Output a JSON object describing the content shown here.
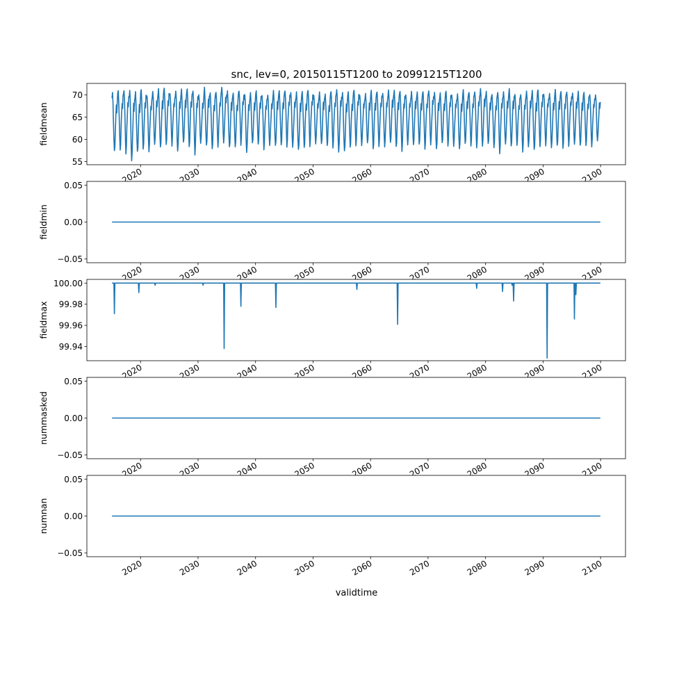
{
  "figure": {
    "title": "snc, lev=0, 20150115T1200 to 20991215T1200",
    "xlabel": "validtime"
  },
  "chart_data": [
    {
      "type": "line",
      "ylabel": "fieldmean",
      "x_range": [
        "2015-01-15",
        "2099-12-15"
      ],
      "xlim": [
        "2010-09-01",
        "2104-05-01"
      ],
      "ylim": [
        54.3,
        72.6
      ],
      "yticks": [
        55,
        60,
        65,
        70
      ],
      "ytick_labels": [
        "55",
        "60",
        "65",
        "70"
      ],
      "xticks": [
        "2020",
        "2030",
        "2040",
        "2050",
        "2060",
        "2070",
        "2080",
        "2090",
        "2100"
      ],
      "line_color": "#1f77b4",
      "series": [
        {
          "pattern": "monthly seasonal cycle",
          "annual_max": [
            70.2,
            71.0,
            71.3,
            71.0,
            70.4,
            71.2,
            70.1,
            70.8,
            71.1,
            71.5,
            70.6,
            70.9,
            71.0,
            71.3,
            71.2,
            70.1,
            71.4,
            70.4,
            70.9,
            71.8,
            70.6,
            70.3,
            71.2,
            70.2,
            70.2,
            70.8,
            70.2,
            70.1,
            70.7,
            70.8,
            71.2,
            70.7,
            70.4,
            70.6,
            71.3,
            70.1,
            70.4,
            70.0,
            71.0,
            71.4,
            70.3,
            70.5,
            71.3,
            70.2,
            70.1,
            70.8,
            70.9,
            70.6,
            70.9,
            70.8,
            71.0,
            70.3,
            70.6,
            70.4,
            70.9,
            71.2,
            70.4,
            70.2,
            71.0,
            70.3,
            70.1,
            70.9,
            70.7,
            71.0,
            71.3,
            70.5,
            70.2,
            70.9,
            70.6,
            71.1,
            70.2,
            70.4,
            70.8,
            70.7,
            71.2,
            70.5,
            70.3,
            70.9,
            70.8,
            71.0,
            70.4,
            70.5,
            70.6,
            70.4,
            70.0
          ],
          "annual_min": [
            57.2,
            57.8,
            57.0,
            55.0,
            57.0,
            58.0,
            57.5,
            58.7,
            58.0,
            59.0,
            58.8,
            57.2,
            59.1,
            58.5,
            56.8,
            59.0,
            58.4,
            58.0,
            58.6,
            59.1,
            58.0,
            58.4,
            59.0,
            57.0,
            58.9,
            59.0,
            58.0,
            58.6,
            58.3,
            58.8,
            58.6,
            58.2,
            57.4,
            58.2,
            58.7,
            59.0,
            58.7,
            58.6,
            58.4,
            57.2,
            57.1,
            58.2,
            58.9,
            58.7,
            58.9,
            57.8,
            58.7,
            58.4,
            59.0,
            58.3,
            57.6,
            58.9,
            58.5,
            58.8,
            58.1,
            58.9,
            57.6,
            59.1,
            58.8,
            58.6,
            57.6,
            58.9,
            58.8,
            58.3,
            58.2,
            58.9,
            58.4,
            57.0,
            58.7,
            58.3,
            58.9,
            57.4,
            58.1,
            57.5,
            58.6,
            58.8,
            57.9,
            58.4,
            58.2,
            58.7,
            58.7,
            58.4,
            58.8,
            58.6,
            59.5
          ]
        }
      ]
    },
    {
      "type": "line",
      "ylabel": "fieldmin",
      "x_range": [
        "2015-01-15",
        "2099-12-15"
      ],
      "xlim": [
        "2010-09-01",
        "2104-05-01"
      ],
      "ylim": [
        -0.055,
        0.055
      ],
      "yticks": [
        -0.05,
        0.0,
        0.05
      ],
      "ytick_labels": [
        "−0.05",
        "0.00",
        "0.05"
      ],
      "xticks": [
        "2020",
        "2030",
        "2040",
        "2050",
        "2060",
        "2070",
        "2080",
        "2090",
        "2100"
      ],
      "line_color": "#1f77b4",
      "series": [
        {
          "constant": 0.0
        }
      ]
    },
    {
      "type": "line",
      "ylabel": "fieldmax",
      "x_range": [
        "2015-01-15",
        "2099-12-15"
      ],
      "xlim": [
        "2010-09-01",
        "2104-05-01"
      ],
      "ylim": [
        99.9265,
        100.0035
      ],
      "yticks": [
        99.94,
        99.96,
        99.98,
        100.0
      ],
      "ytick_labels": [
        "99.94",
        "99.96",
        "99.98",
        "100.00"
      ],
      "xticks": [
        "2020",
        "2030",
        "2040",
        "2050",
        "2060",
        "2070",
        "2080",
        "2090",
        "2100"
      ],
      "line_color": "#1f77b4",
      "series": [
        {
          "baseline": 100.0,
          "dips": [
            {
              "date": "2015-06-15",
              "value": 99.971
            },
            {
              "date": "2019-09-15",
              "value": 99.991
            },
            {
              "date": "2022-07-15",
              "value": 99.998
            },
            {
              "date": "2030-11-15",
              "value": 99.998
            },
            {
              "date": "2034-07-15",
              "value": 99.938
            },
            {
              "date": "2037-06-15",
              "value": 99.978
            },
            {
              "date": "2043-07-15",
              "value": 99.977
            },
            {
              "date": "2057-08-15",
              "value": 99.994
            },
            {
              "date": "2064-09-15",
              "value": 99.961
            },
            {
              "date": "2078-06-15",
              "value": 99.995
            },
            {
              "date": "2082-12-15",
              "value": 99.992
            },
            {
              "date": "2084-08-15",
              "value": 99.998
            },
            {
              "date": "2084-11-15",
              "value": 99.983
            },
            {
              "date": "2090-09-15",
              "value": 99.929
            },
            {
              "date": "2095-06-15",
              "value": 99.966
            },
            {
              "date": "2095-09-15",
              "value": 99.989
            }
          ]
        }
      ]
    },
    {
      "type": "line",
      "ylabel": "nummasked",
      "x_range": [
        "2015-01-15",
        "2099-12-15"
      ],
      "xlim": [
        "2010-09-01",
        "2104-05-01"
      ],
      "ylim": [
        -0.055,
        0.055
      ],
      "yticks": [
        -0.05,
        0.0,
        0.05
      ],
      "ytick_labels": [
        "−0.05",
        "0.00",
        "0.05"
      ],
      "xticks": [
        "2020",
        "2030",
        "2040",
        "2050",
        "2060",
        "2070",
        "2080",
        "2090",
        "2100"
      ],
      "line_color": "#1f77b4",
      "series": [
        {
          "constant": 0.0
        }
      ]
    },
    {
      "type": "line",
      "ylabel": "numnan",
      "x_range": [
        "2015-01-15",
        "2099-12-15"
      ],
      "xlim": [
        "2010-09-01",
        "2104-05-01"
      ],
      "ylim": [
        -0.055,
        0.055
      ],
      "yticks": [
        -0.05,
        0.0,
        0.05
      ],
      "ytick_labels": [
        "−0.05",
        "0.00",
        "0.05"
      ],
      "xticks": [
        "2020",
        "2030",
        "2040",
        "2050",
        "2060",
        "2070",
        "2080",
        "2090",
        "2100"
      ],
      "line_color": "#1f77b4",
      "series": [
        {
          "constant": 0.0
        }
      ]
    }
  ]
}
